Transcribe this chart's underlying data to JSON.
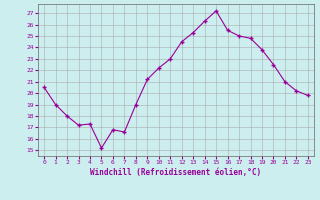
{
  "x": [
    0,
    1,
    2,
    3,
    4,
    5,
    6,
    7,
    8,
    9,
    10,
    11,
    12,
    13,
    14,
    15,
    16,
    17,
    18,
    19,
    20,
    21,
    22,
    23
  ],
  "y": [
    20.5,
    19.0,
    18.0,
    17.2,
    17.3,
    15.2,
    16.8,
    16.6,
    19.0,
    21.2,
    22.2,
    23.0,
    24.5,
    25.3,
    26.3,
    27.2,
    25.5,
    25.0,
    24.8,
    23.8,
    22.5,
    21.0,
    20.2,
    19.8
  ],
  "line_color": "#990099",
  "marker": "+",
  "marker_size": 3,
  "marker_color": "#990099",
  "bg_color": "#cceeee",
  "grid_color": "#aaaaaa",
  "xlabel": "Windchill (Refroidissement éolien,°C)",
  "xlabel_color": "#990099",
  "tick_color": "#990099",
  "ylabel_ticks": [
    15,
    16,
    17,
    18,
    19,
    20,
    21,
    22,
    23,
    24,
    25,
    26,
    27
  ],
  "ylim": [
    14.5,
    27.8
  ],
  "xlim": [
    -0.5,
    23.5
  ],
  "figsize": [
    3.2,
    2.0
  ],
  "dpi": 100
}
